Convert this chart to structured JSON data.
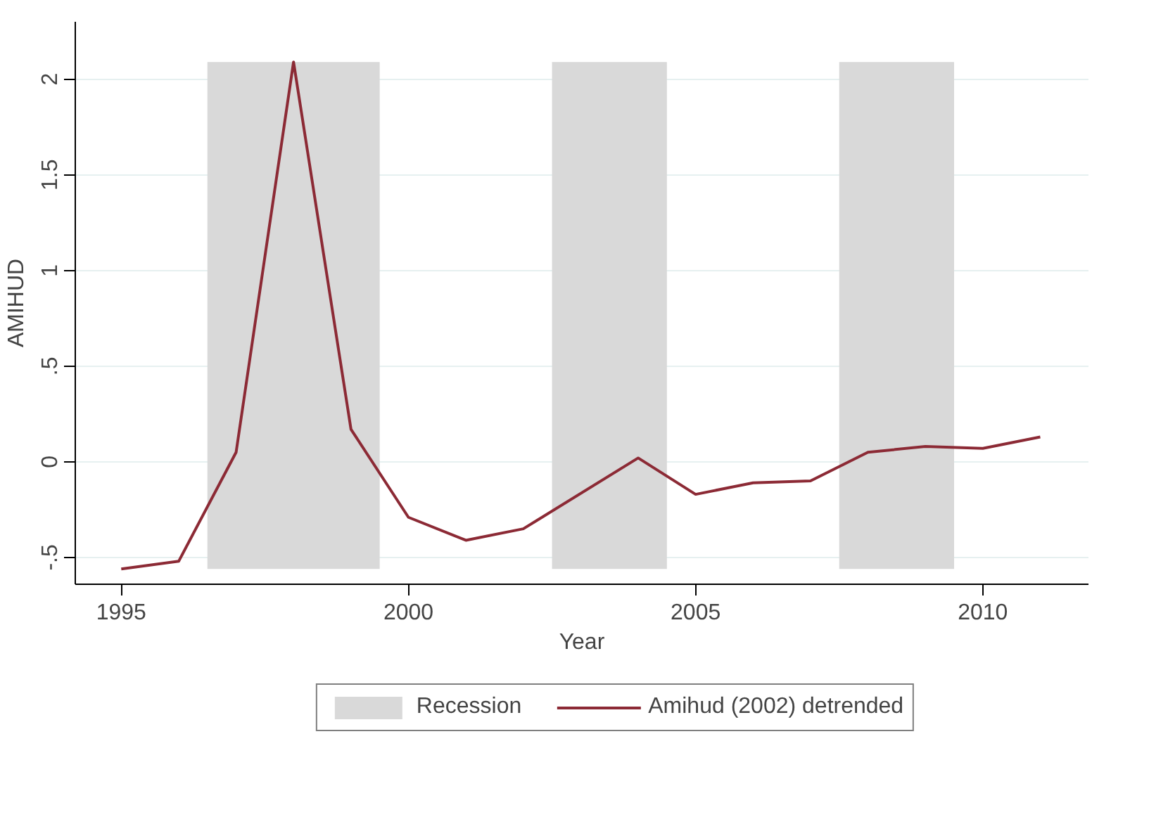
{
  "chart_data": {
    "type": "line",
    "xlabel": "Year",
    "ylabel": "AMIHUD",
    "x": [
      1995,
      1996,
      1997,
      1998,
      1999,
      2000,
      2001,
      2002,
      2004,
      2005,
      2006,
      2007,
      2008,
      2009,
      2010,
      2011
    ],
    "series": [
      {
        "name": "Amihud (2002) detrended",
        "color": "#8c2a35",
        "values": [
          -0.56,
          -0.52,
          0.05,
          2.09,
          0.17,
          -0.29,
          -0.41,
          -0.35,
          0.02,
          -0.17,
          -0.11,
          -0.1,
          0.05,
          0.08,
          0.07,
          0.13
        ]
      }
    ],
    "bands": [
      {
        "axis": "x",
        "from": 1996.5,
        "to": 1999.5,
        "label": "Recession",
        "color": "#d9d9d9"
      },
      {
        "axis": "x",
        "from": 2002.5,
        "to": 2004.5,
        "color": "#d9d9d9"
      },
      {
        "axis": "x",
        "from": 2007.5,
        "to": 2009.5,
        "color": "#d9d9d9"
      }
    ],
    "xlim": [
      1994.2,
      2011.84
    ],
    "xticks": [
      1995,
      2000,
      2005,
      2010
    ],
    "ylim": [
      -0.64,
      2.3
    ],
    "yticks": [
      {
        "value": -0.5,
        "label": "-.5"
      },
      0,
      {
        "value": 0.5,
        "label": ".5"
      },
      1,
      1.5,
      2
    ],
    "grid": "y",
    "legend": "bottom"
  }
}
